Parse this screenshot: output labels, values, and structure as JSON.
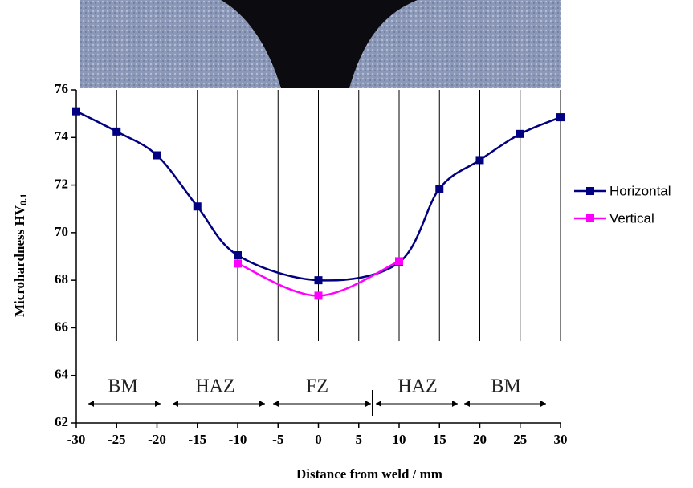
{
  "chart_data": {
    "type": "line",
    "xlabel": "Distance from weld / mm",
    "ylabel": "Microhardness HV",
    "ylabel_subscript": "0.1",
    "x": [
      -30,
      -25,
      -20,
      -15,
      -10,
      0,
      10,
      15,
      20,
      25,
      30
    ],
    "series": [
      {
        "name": "Horizontal",
        "color": "#000080",
        "values": [
          75.1,
          74.25,
          73.25,
          71.1,
          69.05,
          68.0,
          68.75,
          71.85,
          73.05,
          74.15,
          74.85
        ]
      },
      {
        "name": "Vertical",
        "color": "#ff00ff",
        "x": [
          -10,
          0,
          10
        ],
        "values": [
          68.7,
          67.35,
          68.8
        ]
      }
    ],
    "xlim": [
      -30,
      30
    ],
    "xticks": [
      -30,
      -25,
      -20,
      -15,
      -10,
      -5,
      0,
      5,
      10,
      15,
      20,
      25,
      30
    ],
    "ylim": [
      62,
      76
    ],
    "yticks": [
      62,
      64,
      66,
      68,
      70,
      72,
      74,
      76
    ],
    "grid": "x",
    "legend": "right",
    "annotations": [
      {
        "text": "BM"
      },
      {
        "text": "HAZ"
      },
      {
        "text": "FZ"
      },
      {
        "text": "HAZ"
      },
      {
        "text": "BM"
      }
    ]
  }
}
